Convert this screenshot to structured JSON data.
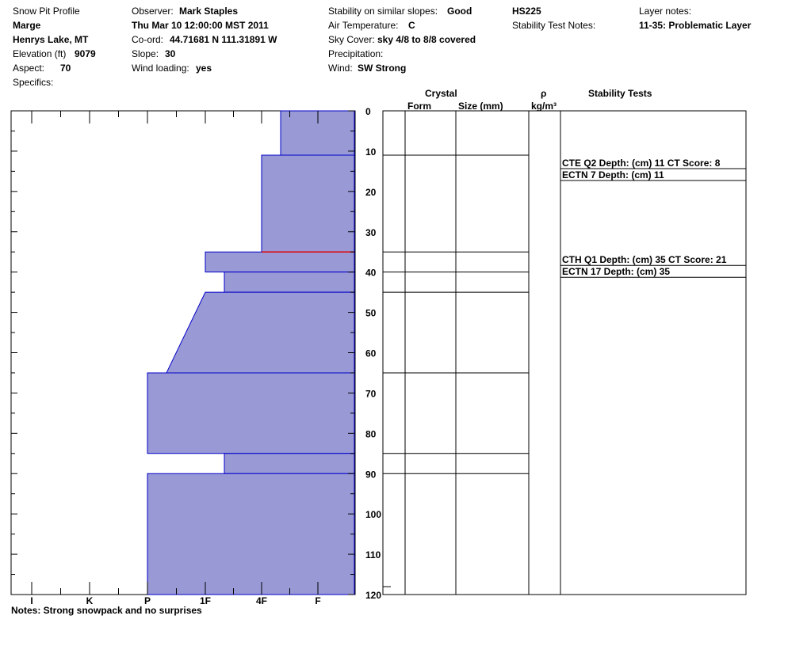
{
  "header": {
    "title": "Snow Pit Profile",
    "name": "Marge",
    "location": "Henrys Lake, MT",
    "elevation_label": "Elevation (ft)",
    "elevation_value": "9079",
    "aspect_label": "Aspect:",
    "aspect_value": "70",
    "specifics_label": "Specifics:",
    "observer_label": "Observer:",
    "observer_value": "Mark Staples",
    "datetime": "Thu Mar 10 12:00:00 MST 2011",
    "coord_label": "Co-ord:",
    "coord_value": "44.71681 N 111.31891 W",
    "slope_label": "Slope:",
    "slope_value": "30",
    "wind_loading_label": "Wind loading:",
    "wind_loading_value": "yes",
    "stability_label": "Stability on similar slopes:",
    "stability_value": "Good",
    "air_temp_label": "Air Temperature:",
    "air_temp_value": "C",
    "sky_label": "Sky Cover:",
    "sky_value": "sky 4/8 to 8/8 covered",
    "precip_label": "Precipitation:",
    "wind_label": "Wind:",
    "wind_value": "SW Strong",
    "hs": "HS225",
    "stability_notes_label": "Stability Test Notes:",
    "layer_notes_label": "Layer notes:",
    "layer_notes_value": "11-35: Problematic Layer"
  },
  "columns": {
    "crystal": "Crystal",
    "form": "Form",
    "size": "Size (mm)",
    "rho": "ρ",
    "rho_unit": "kg/m³",
    "stability_tests": "Stability Tests"
  },
  "notes": "Notes:  Strong snowpack and no surprises",
  "chart_data": {
    "type": "bar",
    "title": "",
    "xlabel": "",
    "ylabel": "",
    "hardness_scale": [
      "I",
      "K",
      "P",
      "1F",
      "4F",
      "F"
    ],
    "depth_axis": {
      "range": [
        0,
        120
      ],
      "ticks": [
        0,
        10,
        20,
        30,
        40,
        50,
        60,
        70,
        80,
        90,
        100,
        110,
        120
      ]
    },
    "layers": [
      {
        "top": 0,
        "bottom": 11,
        "hardness": "4F+"
      },
      {
        "top": 11,
        "bottom": 35,
        "hardness": "4F"
      },
      {
        "top": 35,
        "bottom": 40,
        "hardness": "1F"
      },
      {
        "top": 40,
        "bottom": 45,
        "hardness": "1F+"
      },
      {
        "top": 45,
        "bottom": 65,
        "hardness_top": "1F",
        "hardness_bottom": "P+"
      },
      {
        "top": 65,
        "bottom": 85,
        "hardness": "P"
      },
      {
        "top": 85,
        "bottom": 90,
        "hardness": "1F+"
      },
      {
        "top": 90,
        "bottom": 120,
        "hardness": "P"
      }
    ],
    "layer_boundaries": [
      11,
      35,
      40,
      45,
      65,
      85,
      90
    ],
    "critical_layer_depth": 35,
    "stability_tests": [
      {
        "text": "CTE Q2 Depth: (cm) 11 CT Score: 8",
        "depth": 11
      },
      {
        "text": "ECTN 7   Depth: (cm) 11",
        "depth": 11
      },
      {
        "text": "CTH Q1 Depth: (cm) 35 CT Score: 21",
        "depth": 35
      },
      {
        "text": "ECTN 17   Depth: (cm) 35",
        "depth": 35
      }
    ],
    "colors": {
      "fill": "#9999d6",
      "outline": "#0000c8",
      "critical": "#e00000"
    }
  }
}
